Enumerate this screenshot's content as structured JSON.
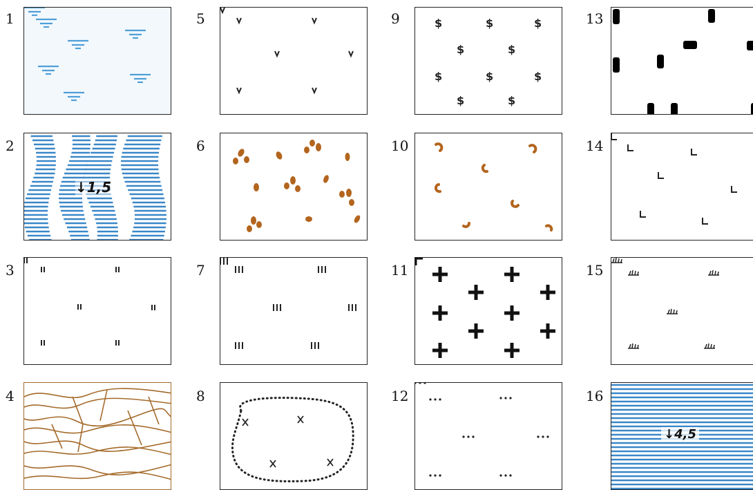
{
  "panels": [
    {
      "number": "1",
      "pattern": "water-marks-icon",
      "color": "#4f9fd8"
    },
    {
      "number": "2",
      "pattern": "wavy-hatching-icon",
      "color": "#3a87c8",
      "label": "1,5"
    },
    {
      "number": "3",
      "pattern": "double-tick-icon",
      "color": "#222222"
    },
    {
      "number": "4",
      "pattern": "contour-lines-icon",
      "color": "#a46a2a"
    },
    {
      "number": "5",
      "pattern": "grass-tuft-icon",
      "color": "#222222"
    },
    {
      "number": "6",
      "pattern": "leaf-cluster-icon",
      "color": "#b3651e"
    },
    {
      "number": "7",
      "pattern": "triple-tick-icon",
      "color": "#222222"
    },
    {
      "number": "8",
      "pattern": "dotted-boundary-icon",
      "color": "#222222"
    },
    {
      "number": "9",
      "pattern": "dollar-sign-icon",
      "color": "#222222"
    },
    {
      "number": "10",
      "pattern": "crescent-icon",
      "color": "#b3651e"
    },
    {
      "number": "11",
      "pattern": "plus-cross-icon",
      "color": "#111111"
    },
    {
      "number": "12",
      "pattern": "three-dots-icon",
      "color": "#222222"
    },
    {
      "number": "13",
      "pattern": "black-blocks-icon",
      "color": "#000000"
    },
    {
      "number": "14",
      "pattern": "corner-mark-icon",
      "color": "#222222"
    },
    {
      "number": "15",
      "pattern": "shrub-icon",
      "color": "#222222"
    },
    {
      "number": "16",
      "pattern": "horizontal-hatching-icon",
      "color": "#3a87c8",
      "label": "4,5"
    }
  ]
}
